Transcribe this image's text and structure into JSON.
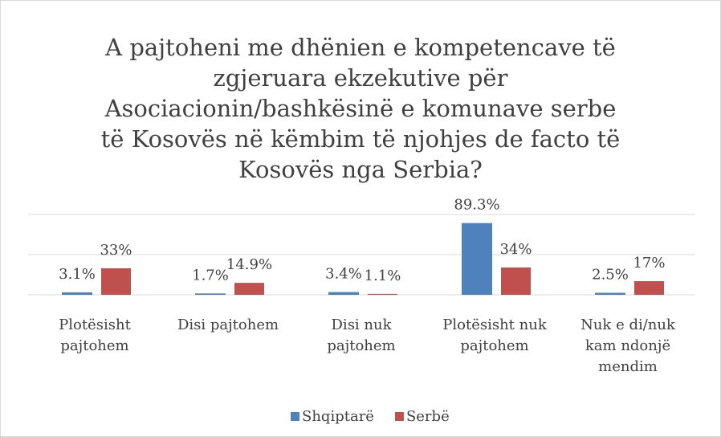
{
  "chart_data": {
    "type": "bar",
    "title": "A pajtoheni me dhënien e kompetencave të zgjeruara ekzekutive për Asociacionin/bashkësinë e komunave serbe të Kosovës në këmbim të njohjes de facto të Kosovës nga Serbia?",
    "categories": [
      "Plotësisht pajtohem",
      "Disi pajtohem",
      "Disi nuk pajtohem",
      "Plotësisht nuk pajtohem",
      "Nuk e di/nuk kam ndonjë mendim"
    ],
    "series": [
      {
        "name": "Shqiptarë",
        "color": "#4f81bd",
        "values": [
          3.1,
          1.7,
          3.4,
          89.3,
          2.5
        ],
        "value_labels": [
          "3.1%",
          "1.7%",
          "3.4%",
          "89.3%",
          "2.5%"
        ]
      },
      {
        "name": "Serbë",
        "color": "#c0504d",
        "values": [
          33,
          14.9,
          1.1,
          34,
          17
        ],
        "value_labels": [
          "33%",
          "14.9%",
          "1.1%",
          "34%",
          "17%"
        ]
      }
    ],
    "ylim": [
      0,
      100
    ],
    "yticks": [
      0,
      50,
      100
    ],
    "grid": true,
    "legend": "bottom"
  }
}
